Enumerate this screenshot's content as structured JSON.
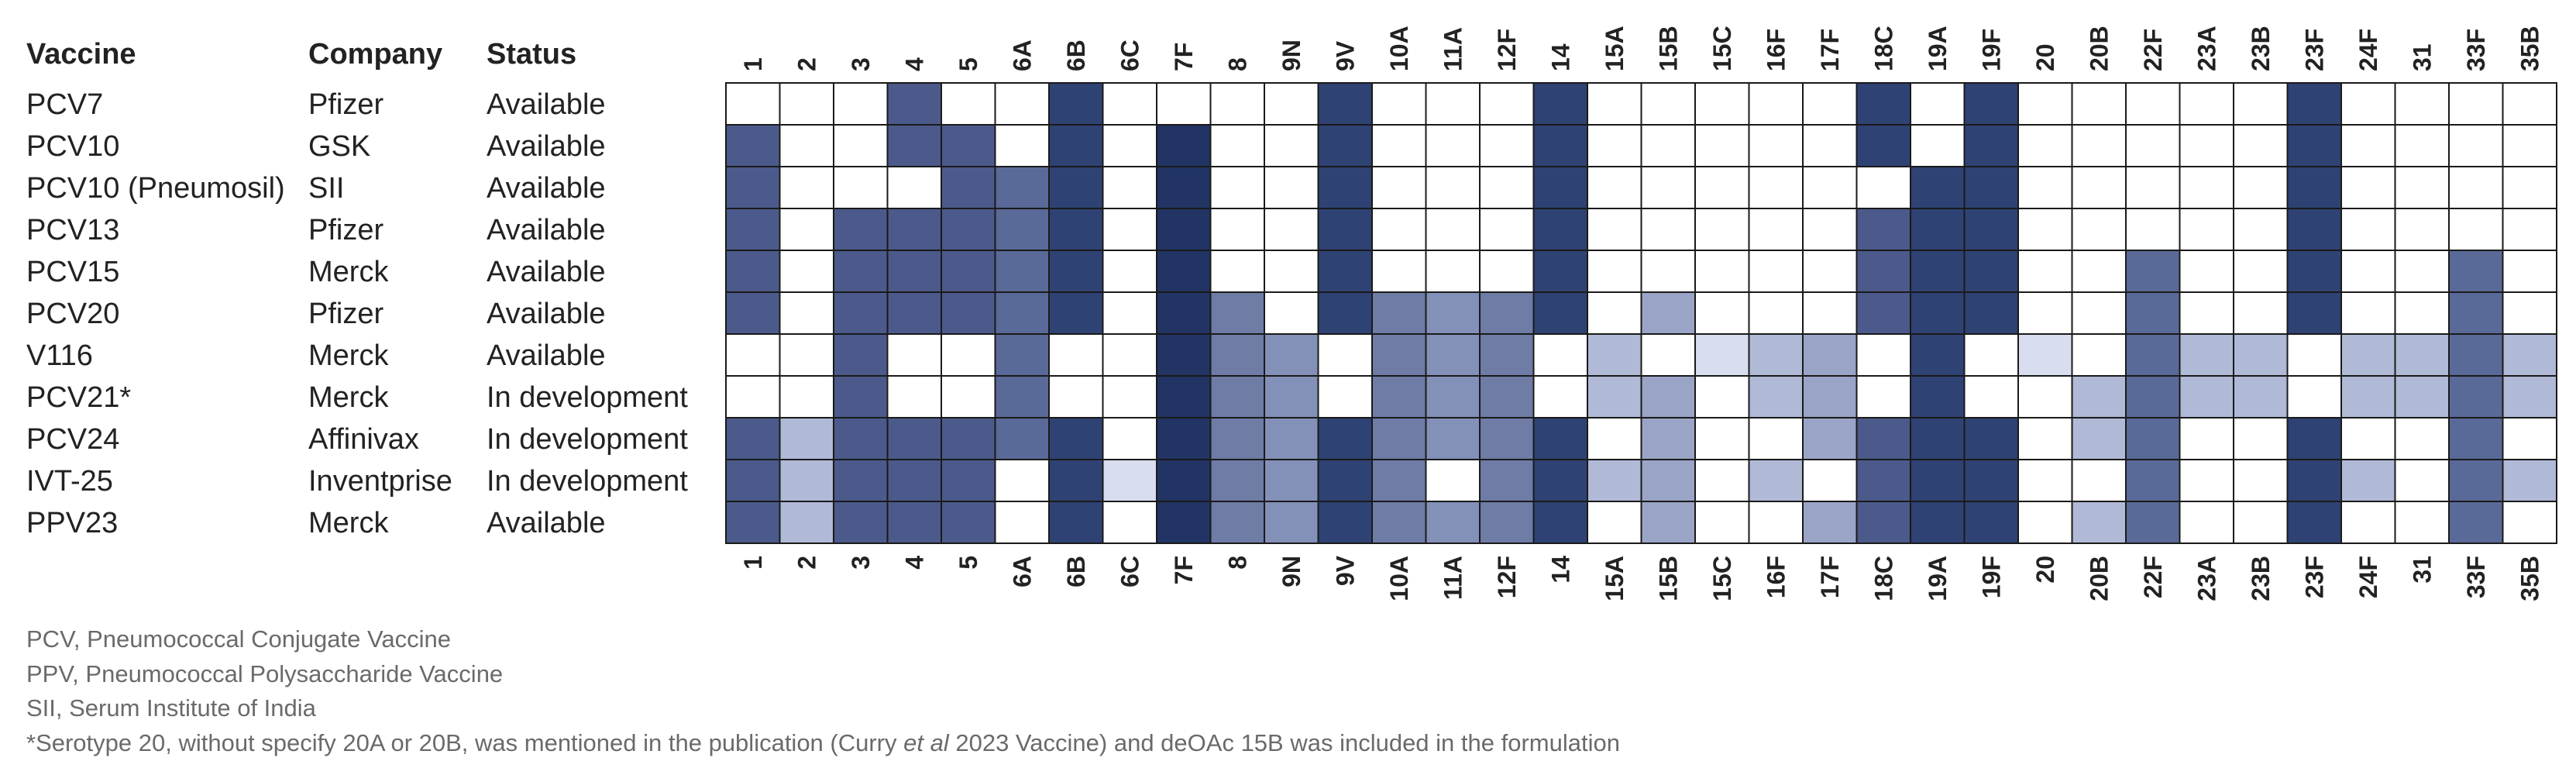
{
  "chart_data": {
    "type": "heatmap",
    "headers": {
      "vaccine": "Vaccine",
      "company": "Company",
      "status": "Status"
    },
    "serotypes": [
      "1",
      "2",
      "3",
      "4",
      "5",
      "6A",
      "6B",
      "6C",
      "7F",
      "8",
      "9N",
      "9V",
      "10A",
      "11A",
      "12F",
      "14",
      "15A",
      "15B",
      "15C",
      "16F",
      "17F",
      "18C",
      "19A",
      "19F",
      "20",
      "20B",
      "22F",
      "23A",
      "23B",
      "23F",
      "24F",
      "31",
      "33F",
      "35B"
    ],
    "rows": [
      {
        "vaccine": "PCV7",
        "company": "Pfizer",
        "status": "Available",
        "cells": [
          0,
          0,
          0,
          1,
          0,
          0,
          2,
          0,
          0,
          0,
          0,
          2,
          0,
          0,
          0,
          2,
          0,
          0,
          0,
          0,
          0,
          2,
          0,
          2,
          0,
          0,
          0,
          0,
          0,
          2,
          0,
          0,
          0,
          0
        ]
      },
      {
        "vaccine": "PCV10",
        "company": "GSK",
        "status": "Available",
        "cells": [
          1,
          0,
          0,
          1,
          1,
          0,
          2,
          0,
          3,
          0,
          0,
          2,
          0,
          0,
          0,
          2,
          0,
          0,
          0,
          0,
          0,
          2,
          0,
          2,
          0,
          0,
          0,
          0,
          0,
          2,
          0,
          0,
          0,
          0
        ]
      },
      {
        "vaccine": "PCV10 (Pneumosil)",
        "company": "SII",
        "status": "Available",
        "cells": [
          1,
          0,
          0,
          0,
          1,
          4,
          2,
          0,
          3,
          0,
          0,
          2,
          0,
          0,
          0,
          2,
          0,
          0,
          0,
          0,
          0,
          0,
          2,
          2,
          0,
          0,
          0,
          0,
          0,
          2,
          0,
          0,
          0,
          0
        ]
      },
      {
        "vaccine": "PCV13",
        "company": "Pfizer",
        "status": "Available",
        "cells": [
          1,
          0,
          1,
          1,
          1,
          4,
          2,
          0,
          3,
          0,
          0,
          2,
          0,
          0,
          0,
          2,
          0,
          0,
          0,
          0,
          0,
          1,
          2,
          2,
          0,
          0,
          0,
          0,
          0,
          2,
          0,
          0,
          0,
          0
        ]
      },
      {
        "vaccine": "PCV15",
        "company": "Merck",
        "status": "Available",
        "cells": [
          1,
          0,
          1,
          1,
          1,
          4,
          2,
          0,
          3,
          0,
          0,
          2,
          0,
          0,
          0,
          2,
          0,
          0,
          0,
          0,
          0,
          1,
          2,
          2,
          0,
          0,
          4,
          0,
          0,
          2,
          0,
          0,
          4,
          0
        ]
      },
      {
        "vaccine": "PCV20",
        "company": "Pfizer",
        "status": "Available",
        "cells": [
          1,
          0,
          1,
          1,
          1,
          4,
          2,
          0,
          3,
          5,
          0,
          2,
          5,
          6,
          5,
          2,
          0,
          7,
          0,
          0,
          0,
          1,
          2,
          2,
          0,
          0,
          4,
          0,
          0,
          2,
          0,
          0,
          4,
          0
        ]
      },
      {
        "vaccine": "V116",
        "company": "Merck",
        "status": "Available",
        "cells": [
          0,
          0,
          1,
          0,
          0,
          4,
          0,
          0,
          3,
          5,
          6,
          0,
          5,
          6,
          5,
          0,
          8,
          0,
          9,
          8,
          7,
          0,
          2,
          0,
          9,
          0,
          4,
          8,
          8,
          0,
          8,
          8,
          4,
          8
        ]
      },
      {
        "vaccine": "PCV21*",
        "company": "Merck",
        "status": "In development",
        "cells": [
          0,
          0,
          1,
          0,
          0,
          4,
          0,
          0,
          3,
          5,
          6,
          0,
          5,
          6,
          5,
          0,
          8,
          7,
          0,
          8,
          7,
          0,
          2,
          0,
          0,
          8,
          4,
          8,
          8,
          0,
          8,
          8,
          4,
          8
        ]
      },
      {
        "vaccine": "PCV24",
        "company": "Affinivax",
        "status": "In development",
        "cells": [
          1,
          8,
          1,
          1,
          1,
          4,
          2,
          0,
          3,
          5,
          6,
          2,
          5,
          6,
          5,
          2,
          0,
          7,
          0,
          0,
          7,
          1,
          2,
          2,
          0,
          8,
          4,
          0,
          0,
          2,
          0,
          0,
          4,
          0
        ]
      },
      {
        "vaccine": "IVT-25",
        "company": "Inventprise",
        "status": "In development",
        "cells": [
          1,
          8,
          1,
          1,
          1,
          0,
          2,
          9,
          3,
          5,
          6,
          2,
          5,
          0,
          5,
          2,
          8,
          7,
          0,
          8,
          0,
          1,
          2,
          2,
          0,
          0,
          4,
          0,
          0,
          2,
          8,
          0,
          4,
          8
        ]
      },
      {
        "vaccine": "PPV23",
        "company": "Merck",
        "status": "Available",
        "cells": [
          1,
          8,
          1,
          1,
          1,
          0,
          2,
          0,
          3,
          5,
          6,
          2,
          5,
          6,
          5,
          2,
          0,
          7,
          0,
          0,
          7,
          1,
          2,
          2,
          0,
          8,
          4,
          0,
          0,
          2,
          0,
          0,
          4,
          0
        ]
      }
    ],
    "cell_colors": [
      "#ffffff",
      "#4b5a8a",
      "#2f4274",
      "#223463",
      "#5a6a98",
      "#6e7ca6",
      "#8390b7",
      "#9aa4c6",
      "#b0b9d6",
      "#d8ddef"
    ]
  },
  "footnotes": [
    "PCV, Pneumococcal Conjugate Vaccine",
    "PPV, Pneumococcal Polysaccharide Vaccine",
    "SII, Serum Institute of India"
  ],
  "footnote_last": {
    "before": "*Serotype 20, without specify 20A or 20B, was mentioned in the publication (Curry ",
    "italic": "et al",
    "after": "  2023 Vaccine) and deOAc 15B was included in the formulation"
  }
}
